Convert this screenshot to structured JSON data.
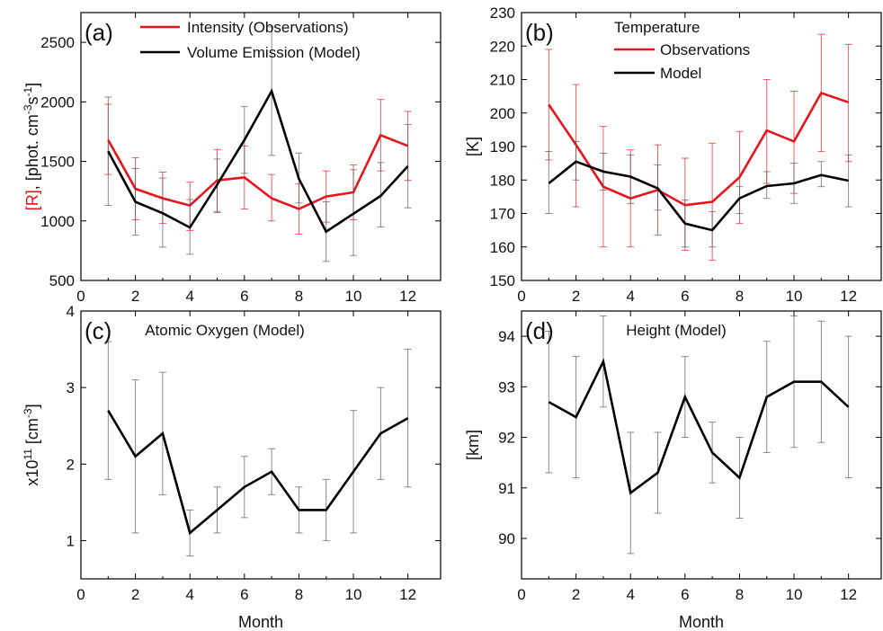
{
  "chart_data": [
    {
      "type": "line",
      "panel_label": "(a)",
      "xlabel": "",
      "ylabel_parts": [
        "[R]",
        ", [phot. cm",
        "-3",
        "s",
        "-1",
        "]"
      ],
      "xlim": [
        0,
        13.2
      ],
      "ylim": [
        500,
        2750
      ],
      "x_ticks": [
        "0",
        "2",
        "4",
        "6",
        "8",
        "10",
        "12"
      ],
      "y_ticks": [
        "500",
        "1000",
        "1500",
        "2000",
        "2500"
      ],
      "x": [
        1,
        2,
        3,
        4,
        5,
        6,
        7,
        8,
        9,
        10,
        11,
        12
      ],
      "legend_position": "top-center",
      "series": [
        {
          "name": "Intensity (Observations)",
          "color": "#e8141b",
          "values": [
            1680,
            1270,
            1190,
            1130,
            1340,
            1365,
            1190,
            1100,
            1205,
            1240,
            1720,
            1630
          ],
          "err_low": [
            1390,
            1010,
            980,
            920,
            1080,
            1100,
            1000,
            890,
            990,
            1010,
            1420,
            1340
          ],
          "err_high": [
            1980,
            1530,
            1410,
            1325,
            1600,
            1630,
            1390,
            1310,
            1420,
            1470,
            2020,
            1920
          ]
        },
        {
          "name": "Volume Emission (Model)",
          "color": "#000000",
          "values": [
            1585,
            1160,
            1065,
            945,
            1305,
            1680,
            2090,
            1355,
            910,
            1060,
            1210,
            1460
          ],
          "err_low": [
            1130,
            880,
            780,
            720,
            1070,
            1400,
            1550,
            1150,
            660,
            710,
            950,
            1110
          ],
          "err_high": [
            2040,
            1440,
            1360,
            1180,
            1520,
            1960,
            2630,
            1570,
            1160,
            1430,
            1490,
            1810
          ]
        }
      ]
    },
    {
      "type": "line",
      "panel_label": "(b)",
      "xlabel": "",
      "ylabel": "[K]",
      "xlim": [
        0,
        13.2
      ],
      "ylim": [
        150,
        230
      ],
      "x_ticks": [
        "0",
        "2",
        "4",
        "6",
        "8",
        "10",
        "12"
      ],
      "y_ticks": [
        "150",
        "160",
        "170",
        "180",
        "190",
        "200",
        "210",
        "220",
        "230"
      ],
      "x": [
        1,
        2,
        3,
        4,
        5,
        6,
        7,
        8,
        9,
        10,
        11,
        12
      ],
      "legend_title": "Temperature",
      "legend_position": "top-center",
      "series": [
        {
          "name": "Observations",
          "color": "#e8141b",
          "values": [
            202.5,
            190.5,
            178,
            174.5,
            177,
            172.5,
            173.5,
            180.8,
            194.8,
            191.5,
            206,
            203.2
          ],
          "err_low": [
            186,
            172,
            160,
            160,
            163.5,
            159,
            156,
            167,
            179,
            176,
            188.5,
            185.5
          ],
          "err_high": [
            219,
            208.5,
            196,
            189,
            190.5,
            186.5,
            191,
            194.5,
            210,
            206.5,
            223.5,
            220.5
          ]
        },
        {
          "name": "Model",
          "color": "#000000",
          "values": [
            179,
            185.5,
            182.5,
            181,
            177.5,
            167,
            165,
            174.5,
            178.2,
            179,
            181.5,
            179.8
          ],
          "err_low": [
            170,
            180,
            177,
            173,
            171,
            160,
            160,
            170,
            174.5,
            173,
            178,
            172
          ],
          "err_high": [
            188.5,
            191.5,
            188,
            187.5,
            184.5,
            174,
            170.5,
            178,
            182.5,
            185,
            185.5,
            187.5
          ]
        }
      ]
    },
    {
      "type": "line",
      "panel_label": "(c)",
      "title": "Atomic Oxygen (Model)",
      "xlabel": "Month",
      "ylabel_parts": [
        "x10",
        "11",
        " [cm",
        "-3",
        "]"
      ],
      "xlim": [
        0,
        13.2
      ],
      "ylim": [
        0.5,
        4
      ],
      "x_ticks": [
        "0",
        "2",
        "4",
        "6",
        "8",
        "10",
        "12"
      ],
      "y_ticks": [
        "1",
        "2",
        "3",
        "4"
      ],
      "x": [
        1,
        2,
        3,
        4,
        5,
        6,
        7,
        8,
        9,
        10,
        11,
        12
      ],
      "series": [
        {
          "color": "#000000",
          "values": [
            2.7,
            2.1,
            2.4,
            1.1,
            1.4,
            1.7,
            1.9,
            1.4,
            1.4,
            1.9,
            2.4,
            2.6
          ],
          "err_low": [
            1.8,
            1.1,
            1.6,
            0.8,
            1.1,
            1.3,
            1.6,
            1.1,
            1.0,
            1.1,
            1.8,
            1.7
          ],
          "err_high": [
            3.6,
            3.1,
            3.2,
            1.4,
            1.7,
            2.1,
            2.2,
            1.7,
            1.8,
            2.7,
            3.0,
            3.5
          ]
        }
      ]
    },
    {
      "type": "line",
      "panel_label": "(d)",
      "title": "Height (Model)",
      "xlabel": "Month",
      "ylabel": "[km]",
      "xlim": [
        0,
        13.2
      ],
      "ylim": [
        89.2,
        94.5
      ],
      "x_ticks": [
        "0",
        "2",
        "4",
        "6",
        "8",
        "10",
        "12"
      ],
      "y_ticks": [
        "90",
        "91",
        "92",
        "93",
        "94"
      ],
      "x": [
        1,
        2,
        3,
        4,
        5,
        6,
        7,
        8,
        9,
        10,
        11,
        12
      ],
      "series": [
        {
          "color": "#000000",
          "values": [
            92.7,
            92.4,
            93.5,
            90.9,
            91.3,
            92.8,
            91.7,
            91.2,
            92.8,
            93.1,
            93.1,
            92.6
          ],
          "err_low": [
            91.3,
            91.2,
            92.6,
            89.7,
            90.5,
            92.0,
            91.1,
            90.4,
            91.7,
            91.8,
            91.9,
            91.2
          ],
          "err_high": [
            94.1,
            93.6,
            94.4,
            92.1,
            92.1,
            93.6,
            92.3,
            92.0,
            93.9,
            94.4,
            94.3,
            94.0
          ]
        }
      ]
    }
  ]
}
